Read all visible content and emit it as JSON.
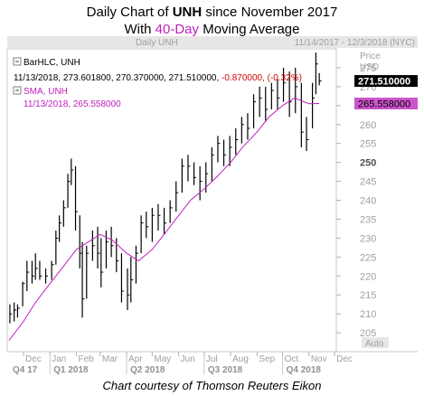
{
  "title": {
    "line1_prefix": "Daily Chart of ",
    "ticker": "UNH",
    "line1_suffix": " since November 2017",
    "line2_prefix": "With ",
    "ma_label": "40-Day",
    "line2_suffix": " Moving Average"
  },
  "caption": "Chart courtesy of Thomson Reuters Eikon",
  "header": {
    "chart_name": "Daily UNH",
    "date_range": "11/14/2017 - 12/3/2018 (NYC)",
    "price_label": "Price",
    "currency": "USD"
  },
  "legend": {
    "bar_series_label": "BarHLC, UNH",
    "bar_values_prefix": "11/13/2018, 273.601800, 270.370000, 271.510000, ",
    "bar_change": "-0.870000, (-0.32%)",
    "sma_label": "SMA, UNH",
    "sma_values": "11/13/2018, 265.558000"
  },
  "auto_label": "Auto",
  "colors": {
    "bars": "#000000",
    "sma": "#c020c0",
    "last_price_tag": "#000000",
    "sma_tag": "#cc55cc",
    "change": "#d00000",
    "header_bar": "#e6e6e6"
  },
  "chart_data": {
    "type": "line",
    "title": "Daily Chart of UNH since November 2017",
    "subtitle": "With 40-Day Moving Average",
    "ylim": [
      200,
      280
    ],
    "y_ticks": [
      205,
      210,
      215,
      220,
      225,
      230,
      235,
      240,
      245,
      250,
      255,
      260,
      265,
      270,
      275
    ],
    "y_ticks_highlighted": [
      250
    ],
    "x_range": [
      "2017-11-14",
      "2018-12-03"
    ],
    "month_ticks": [
      {
        "label": "Dec",
        "date": "2017-12-01"
      },
      {
        "label": "Jan",
        "date": "2018-01-01"
      },
      {
        "label": "Feb",
        "date": "2018-02-01"
      },
      {
        "label": "Mar",
        "date": "2018-03-01"
      },
      {
        "label": "Apr",
        "date": "2018-04-01"
      },
      {
        "label": "May",
        "date": "2018-05-01"
      },
      {
        "label": "Jun",
        "date": "2018-06-01"
      },
      {
        "label": "Jul",
        "date": "2018-07-01"
      },
      {
        "label": "Aug",
        "date": "2018-08-01"
      },
      {
        "label": "Sep",
        "date": "2018-09-01"
      },
      {
        "label": "Oct",
        "date": "2018-10-01"
      },
      {
        "label": "Nov",
        "date": "2018-11-01"
      },
      {
        "label": "Dec",
        "date": "2018-12-01"
      }
    ],
    "quarter_ticks": [
      {
        "label": "Q4 17",
        "date": "2017-11-14"
      },
      {
        "label": "Q1 2018",
        "date": "2018-01-01"
      },
      {
        "label": "Q2 2018",
        "date": "2018-04-01"
      },
      {
        "label": "Q3 2018",
        "date": "2018-07-01"
      },
      {
        "label": "Q4 2018",
        "date": "2018-10-01"
      }
    ],
    "last_price": 271.51,
    "last_sma": 265.558,
    "series": [
      {
        "name": "BarHLC, UNH",
        "kind": "hlc",
        "points": [
          {
            "date": "2017-11-15",
            "high": 212.5,
            "low": 207.5,
            "close": 210
          },
          {
            "date": "2017-11-20",
            "high": 213.0,
            "low": 208.0,
            "close": 211
          },
          {
            "date": "2017-11-24",
            "high": 212.5,
            "low": 209.0,
            "close": 211.5
          },
          {
            "date": "2017-11-30",
            "high": 218.5,
            "low": 212.0,
            "close": 218
          },
          {
            "date": "2017-12-05",
            "high": 224.0,
            "low": 216.0,
            "close": 221
          },
          {
            "date": "2017-12-11",
            "high": 224.0,
            "low": 218.0,
            "close": 220
          },
          {
            "date": "2017-12-15",
            "high": 226.0,
            "low": 219.0,
            "close": 222
          },
          {
            "date": "2017-12-20",
            "high": 224.0,
            "low": 219.0,
            "close": 220
          },
          {
            "date": "2017-12-27",
            "high": 222.0,
            "low": 218.0,
            "close": 220
          },
          {
            "date": "2018-01-03",
            "high": 224.0,
            "low": 219.0,
            "close": 223
          },
          {
            "date": "2018-01-08",
            "high": 232.0,
            "low": 223.0,
            "close": 230
          },
          {
            "date": "2018-01-12",
            "high": 236.0,
            "low": 229.0,
            "close": 234
          },
          {
            "date": "2018-01-17",
            "high": 240.0,
            "low": 233.0,
            "close": 238
          },
          {
            "date": "2018-01-22",
            "high": 247.0,
            "low": 238.0,
            "close": 245
          },
          {
            "date": "2018-01-26",
            "high": 251.0,
            "low": 244.0,
            "close": 248
          },
          {
            "date": "2018-01-31",
            "high": 249.0,
            "low": 232.0,
            "close": 237
          },
          {
            "date": "2018-02-05",
            "high": 236.0,
            "low": 222.0,
            "close": 226
          },
          {
            "date": "2018-02-08",
            "high": 229.0,
            "low": 209.0,
            "close": 214
          },
          {
            "date": "2018-02-13",
            "high": 228.0,
            "low": 214.0,
            "close": 226
          },
          {
            "date": "2018-02-20",
            "high": 232.0,
            "low": 224.0,
            "close": 228
          },
          {
            "date": "2018-02-26",
            "high": 233.0,
            "low": 222.0,
            "close": 226
          },
          {
            "date": "2018-03-02",
            "high": 230.0,
            "low": 217.0,
            "close": 221
          },
          {
            "date": "2018-03-08",
            "high": 232.0,
            "low": 222.0,
            "close": 229
          },
          {
            "date": "2018-03-14",
            "high": 233.0,
            "low": 225.0,
            "close": 228
          },
          {
            "date": "2018-03-20",
            "high": 230.0,
            "low": 221.0,
            "close": 224
          },
          {
            "date": "2018-03-26",
            "high": 226.0,
            "low": 213.0,
            "close": 216
          },
          {
            "date": "2018-04-02",
            "high": 222.0,
            "low": 211.0,
            "close": 215
          },
          {
            "date": "2018-04-06",
            "high": 225.0,
            "low": 213.0,
            "close": 219
          },
          {
            "date": "2018-04-12",
            "high": 228.0,
            "low": 218.0,
            "close": 226
          },
          {
            "date": "2018-04-18",
            "high": 236.0,
            "low": 226.0,
            "close": 234
          },
          {
            "date": "2018-04-24",
            "high": 237.0,
            "low": 230.0,
            "close": 233
          },
          {
            "date": "2018-05-01",
            "high": 238.0,
            "low": 229.0,
            "close": 236
          },
          {
            "date": "2018-05-08",
            "high": 239.0,
            "low": 232.0,
            "close": 236
          },
          {
            "date": "2018-05-15",
            "high": 238.0,
            "low": 231.0,
            "close": 234
          },
          {
            "date": "2018-05-22",
            "high": 240.0,
            "low": 234.0,
            "close": 238
          },
          {
            "date": "2018-05-29",
            "high": 245.0,
            "low": 237.0,
            "close": 242
          },
          {
            "date": "2018-06-05",
            "high": 251.0,
            "low": 242.0,
            "close": 249
          },
          {
            "date": "2018-06-12",
            "high": 252.0,
            "low": 245.0,
            "close": 249
          },
          {
            "date": "2018-06-19",
            "high": 250.0,
            "low": 244.0,
            "close": 246
          },
          {
            "date": "2018-06-26",
            "high": 249.0,
            "low": 240.0,
            "close": 245
          },
          {
            "date": "2018-07-03",
            "high": 250.0,
            "low": 242.0,
            "close": 247
          },
          {
            "date": "2018-07-10",
            "high": 254.0,
            "low": 245.0,
            "close": 252
          },
          {
            "date": "2018-07-17",
            "high": 257.0,
            "low": 250.0,
            "close": 255
          },
          {
            "date": "2018-07-24",
            "high": 256.0,
            "low": 249.0,
            "close": 252
          },
          {
            "date": "2018-07-31",
            "high": 257.0,
            "low": 249.0,
            "close": 254
          },
          {
            "date": "2018-08-07",
            "high": 259.0,
            "low": 252.0,
            "close": 256
          },
          {
            "date": "2018-08-14",
            "high": 262.0,
            "low": 255.0,
            "close": 260
          },
          {
            "date": "2018-08-21",
            "high": 263.0,
            "low": 256.0,
            "close": 259
          },
          {
            "date": "2018-08-28",
            "high": 268.0,
            "low": 259.0,
            "close": 266
          },
          {
            "date": "2018-09-04",
            "high": 270.0,
            "low": 262.0,
            "close": 267
          },
          {
            "date": "2018-09-11",
            "high": 270.0,
            "low": 261.0,
            "close": 264
          },
          {
            "date": "2018-09-18",
            "high": 271.0,
            "low": 264.0,
            "close": 269
          },
          {
            "date": "2018-09-25",
            "high": 272.0,
            "low": 264.0,
            "close": 267
          },
          {
            "date": "2018-10-02",
            "high": 275.0,
            "low": 266.0,
            "close": 271
          },
          {
            "date": "2018-10-09",
            "high": 274.0,
            "low": 262.0,
            "close": 266
          },
          {
            "date": "2018-10-16",
            "high": 275.0,
            "low": 263.0,
            "close": 270
          },
          {
            "date": "2018-10-23",
            "high": 271.0,
            "low": 254.0,
            "close": 258
          },
          {
            "date": "2018-10-29",
            "high": 262.0,
            "low": 253.0,
            "close": 256
          },
          {
            "date": "2018-11-05",
            "high": 271.0,
            "low": 259.0,
            "close": 267
          },
          {
            "date": "2018-11-09",
            "high": 279.0,
            "low": 268.0,
            "close": 276
          },
          {
            "date": "2018-11-13",
            "high": 273.6018,
            "low": 270.37,
            "close": 271.51
          }
        ]
      },
      {
        "name": "SMA, UNH",
        "kind": "line",
        "points": [
          {
            "date": "2017-11-14",
            "value": 203
          },
          {
            "date": "2017-12-01",
            "value": 208
          },
          {
            "date": "2017-12-15",
            "value": 213
          },
          {
            "date": "2018-01-01",
            "value": 218
          },
          {
            "date": "2018-01-15",
            "value": 222
          },
          {
            "date": "2018-02-01",
            "value": 227
          },
          {
            "date": "2018-02-15",
            "value": 229
          },
          {
            "date": "2018-03-01",
            "value": 231
          },
          {
            "date": "2018-03-15",
            "value": 229.5
          },
          {
            "date": "2018-04-01",
            "value": 226
          },
          {
            "date": "2018-04-15",
            "value": 224
          },
          {
            "date": "2018-05-01",
            "value": 227
          },
          {
            "date": "2018-05-15",
            "value": 231
          },
          {
            "date": "2018-06-01",
            "value": 236
          },
          {
            "date": "2018-06-15",
            "value": 240
          },
          {
            "date": "2018-07-01",
            "value": 243
          },
          {
            "date": "2018-07-15",
            "value": 246
          },
          {
            "date": "2018-08-01",
            "value": 250
          },
          {
            "date": "2018-08-15",
            "value": 254
          },
          {
            "date": "2018-09-01",
            "value": 258
          },
          {
            "date": "2018-09-15",
            "value": 262
          },
          {
            "date": "2018-10-01",
            "value": 265
          },
          {
            "date": "2018-10-15",
            "value": 267
          },
          {
            "date": "2018-11-01",
            "value": 265.5
          },
          {
            "date": "2018-11-13",
            "value": 265.558
          }
        ]
      }
    ]
  }
}
